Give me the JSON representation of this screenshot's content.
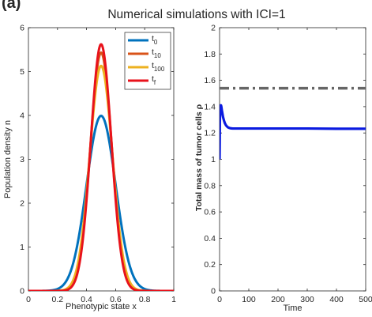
{
  "panel_label": "(a)",
  "figure_title": "Numerical simulations with ICI=1",
  "chart_data": [
    {
      "type": "line",
      "xlabel": "Phenotypic state x",
      "ylabel": "Population density n",
      "xlim": [
        0,
        1
      ],
      "ylim": [
        0,
        6
      ],
      "xticks": [
        "0",
        "0.2",
        "0.4",
        "0.6",
        "0.8",
        "1"
      ],
      "yticks": [
        "0",
        "1",
        "2",
        "3",
        "4",
        "5",
        "6"
      ],
      "grid": false,
      "legend_position": "top-right",
      "series": [
        {
          "name": "t0",
          "label_base": "t",
          "label_sub": "0",
          "color": "#0072BD",
          "peak": 3.99,
          "width": 0.1
        },
        {
          "name": "t10",
          "label_base": "t",
          "label_sub": "10",
          "color": "#D95319",
          "peak": 5.43,
          "width": 0.0735
        },
        {
          "name": "t100",
          "label_base": "t",
          "label_sub": "100",
          "color": "#EDB120",
          "peak": 5.13,
          "width": 0.0778
        },
        {
          "name": "tf",
          "label_base": "t",
          "label_sub": "f",
          "color": "#E8121B",
          "peak": 5.62,
          "width": 0.071
        }
      ],
      "x_center": 0.5
    },
    {
      "type": "line",
      "xlabel": "Time",
      "ylabel": "Total mass of tumor cells ρ",
      "xlim": [
        0,
        500
      ],
      "ylim": [
        0,
        2
      ],
      "xticks": [
        "0",
        "100",
        "200",
        "300",
        "400",
        "500"
      ],
      "yticks": [
        "0",
        "0.2",
        "0.4",
        "0.6",
        "0.8",
        "1",
        "1.2",
        "1.4",
        "1.6",
        "1.8",
        "2"
      ],
      "grid": false,
      "series": [
        {
          "kind": "solid",
          "color": "#0B1BE0",
          "x": [
            0,
            0.5,
            1,
            2,
            3,
            4,
            5,
            6,
            7,
            8,
            10,
            12,
            15,
            18,
            22,
            26,
            30,
            35,
            40,
            45,
            50,
            60,
            80,
            120,
            200,
            300,
            400,
            500
          ],
          "y": [
            1.0,
            1.12,
            1.28,
            1.36,
            1.39,
            1.41,
            1.41,
            1.4,
            1.385,
            1.37,
            1.345,
            1.32,
            1.295,
            1.275,
            1.258,
            1.248,
            1.241,
            1.237,
            1.235,
            1.234,
            1.234,
            1.234,
            1.234,
            1.234,
            1.234,
            1.234,
            1.232,
            1.232
          ]
        },
        {
          "kind": "dashdot",
          "color": "#666666",
          "x": [
            0,
            500
          ],
          "y": [
            1.54,
            1.54
          ]
        }
      ]
    }
  ]
}
